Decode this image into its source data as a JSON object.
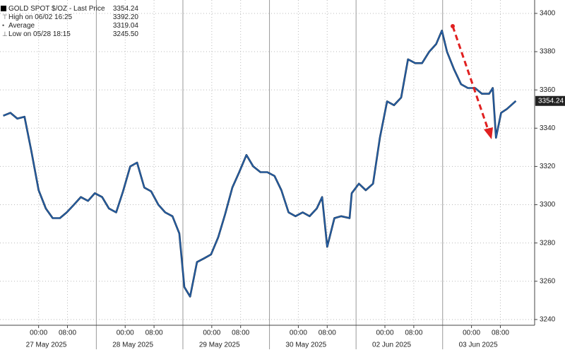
{
  "chart_data": {
    "type": "line",
    "series": [
      {
        "name": "GOLD SPOT $/OZ - Last Price",
        "color": "#2a66b0",
        "values": [
          3346.5,
          3348,
          3345,
          3346,
          3328,
          3307.6,
          3298,
          3293,
          3293,
          3296,
          3300,
          3304,
          3302,
          3306,
          3304,
          3298,
          3296,
          3307,
          3320,
          3322,
          3309,
          3307,
          3300,
          3296,
          3294,
          3285,
          3257,
          3252,
          3270,
          3272,
          3274,
          3283,
          3295,
          3309,
          3317,
          3326,
          3320,
          3317,
          3317,
          3315,
          3307.6,
          3296,
          3294,
          3296,
          3294,
          3298,
          3304,
          3278,
          3293,
          3294,
          3293,
          3306,
          3311,
          3307.6,
          3311,
          3335,
          3354,
          3352,
          3356,
          3376,
          3374,
          3374,
          3380,
          3384,
          3391,
          3380,
          3371,
          3363,
          3361,
          3361,
          3358,
          3358,
          3361,
          3335,
          3348,
          3350,
          3354.24
        ]
      }
    ],
    "x": [
      -9.8,
      -7.8,
      -5.9,
      -3.9,
      -2.0,
      0,
      2.0,
      3.9,
      5.9,
      7.8,
      9.8,
      11.7,
      13.7,
      15.6,
      17.6,
      19.5,
      21.5,
      23.4,
      25.4,
      27.3,
      29.3,
      31.2,
      33.2,
      35.1,
      37.1,
      39.0,
      40.4,
      42.0,
      43.9,
      45.9,
      47.8,
      49.8,
      51.7,
      53.7,
      55.6,
      57.6,
      59.5,
      61.5,
      63.4,
      65.4,
      67.3,
      69.3,
      71.2,
      73.2,
      75.1,
      77.1,
      78.6,
      80.0,
      82.0,
      83.9,
      86.2,
      86.8,
      88.8,
      90.7,
      92.7,
      94.6,
      96.6,
      98.5,
      100.5,
      102.4,
      104.4,
      106.3,
      108.3,
      110.2,
      111.8,
      113.2,
      115.1,
      117.1,
      119.0,
      121.0,
      122.9,
      124.9,
      125.9,
      126.8,
      128.2,
      129.8,
      132.3
    ],
    "xlim": [
      -10.7,
      137.5
    ],
    "xticks": [
      {
        "value": 0,
        "label": "00:00"
      },
      {
        "value": 8,
        "label": "08:00"
      },
      {
        "value": 24,
        "label": "00:00"
      },
      {
        "value": 32,
        "label": "08:00"
      },
      {
        "value": 48,
        "label": "00:00"
      },
      {
        "value": 56,
        "label": "08:00"
      },
      {
        "value": 72,
        "label": "00:00"
      },
      {
        "value": 80,
        "label": "08:00"
      },
      {
        "value": 96,
        "label": "00:00"
      },
      {
        "value": 104,
        "label": "08:00"
      },
      {
        "value": 120,
        "label": "00:00"
      },
      {
        "value": 128,
        "label": "08:00"
      }
    ],
    "date_labels": [
      {
        "value": 0,
        "label": "27 May 2025"
      },
      {
        "value": 24,
        "label": "28 May 2025"
      },
      {
        "value": 48,
        "label": "29 May 2025"
      },
      {
        "value": 72,
        "label": "30 May 2025"
      },
      {
        "value": 96,
        "label": "02 Jun 2025"
      },
      {
        "value": 120,
        "label": "03 Jun 2025"
      }
    ],
    "session_breaks": [
      16,
      40,
      64,
      88,
      112
    ],
    "ylim": [
      3237,
      3407
    ],
    "yticks": [
      3240,
      3260,
      3280,
      3300,
      3320,
      3340,
      3360,
      3380,
      3400
    ],
    "grid": true,
    "last_price_label": "3354.24",
    "legend_stats": [
      {
        "label": "High on 06/02 16:25",
        "value": "3392.20"
      },
      {
        "label": "Average",
        "value": "3319.04"
      },
      {
        "label": "Low on 05/28 18:15",
        "value": "3245.50"
      }
    ]
  }
}
